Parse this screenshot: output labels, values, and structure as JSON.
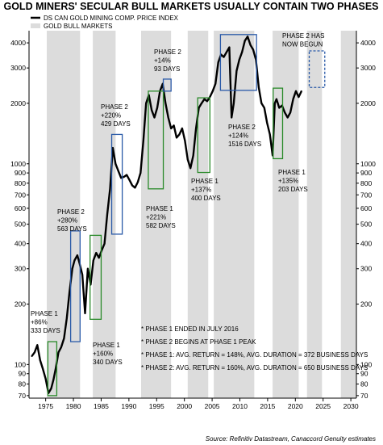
{
  "chart_data": {
    "type": "line",
    "title": "GOLD MINERS' SECULAR BULL MARKETS USUALLY CONTAIN TWO PHASES",
    "source": "Source: Refinitiv Datastream, Canaccord Genuity estimates",
    "yscale": "log",
    "ylim": [
      68,
      4600
    ],
    "xlim": [
      1972.0,
      2031.0
    ],
    "grid": false,
    "legend_position": "top-left",
    "legend": [
      {
        "label": "DS CAN GOLD MINING COMP. PRICE INDEX",
        "color": "#000000",
        "style": "line"
      },
      {
        "label": "GOLD BULL MARKETS",
        "color": "#dcdcdc",
        "style": "area"
      }
    ],
    "x_ticks": [
      1975,
      1980,
      1985,
      1990,
      1995,
      2000,
      2005,
      2010,
      2015,
      2020,
      2025,
      2030
    ],
    "y_ticks_left": [
      70,
      80,
      90,
      100,
      200,
      300,
      400,
      500,
      600,
      700,
      800,
      900,
      1000,
      2000,
      3000,
      4000
    ],
    "y_ticks_right": [
      70,
      80,
      90,
      100,
      200,
      300,
      400,
      500,
      600,
      700,
      800,
      900,
      1000,
      2000,
      3000,
      4000
    ],
    "bull_markets": [
      [
        1975.2,
        1981.2
      ],
      [
        1983.5,
        1987.6
      ],
      [
        1992.2,
        1997.6
      ],
      [
        2000.6,
        2004.3
      ],
      [
        2005.3,
        2012.6
      ],
      [
        2015.9,
        2020.6
      ],
      [
        2022.1,
        2024.8
      ],
      [
        2028.2,
        2031.0
      ]
    ],
    "series": [
      {
        "name": "DS CAN GOLD MINING COMP. PRICE INDEX",
        "color": "#000000",
        "x": [
          1972.5,
          1973.0,
          1973.5,
          1974.0,
          1974.5,
          1975.0,
          1975.5,
          1976.0,
          1976.4,
          1976.8,
          1977.3,
          1977.8,
          1978.3,
          1978.8,
          1979.3,
          1979.8,
          1980.2,
          1980.7,
          1981.1,
          1981.6,
          1982.1,
          1982.6,
          1983.1,
          1983.6,
          1984.1,
          1984.6,
          1985.1,
          1985.6,
          1986.1,
          1986.6,
          1987.1,
          1987.6,
          1988.1,
          1988.6,
          1989.1,
          1989.6,
          1990.1,
          1990.6,
          1991.1,
          1991.6,
          1992.1,
          1992.6,
          1993.1,
          1993.6,
          1994.1,
          1994.6,
          1995.1,
          1995.6,
          1996.1,
          1996.6,
          1997.1,
          1997.6,
          1998.1,
          1998.6,
          1999.1,
          1999.6,
          2000.1,
          2000.6,
          2001.1,
          2001.6,
          2002.1,
          2002.6,
          2003.1,
          2003.6,
          2004.1,
          2004.6,
          2005.1,
          2005.6,
          2006.1,
          2006.6,
          2007.1,
          2007.6,
          2008.1,
          2008.5,
          2008.9,
          2009.4,
          2009.9,
          2010.4,
          2010.9,
          2011.4,
          2011.9,
          2012.4,
          2012.9,
          2013.4,
          2013.9,
          2014.4,
          2014.9,
          2015.4,
          2015.9,
          2016.3,
          2016.6,
          2017.1,
          2017.6,
          2018.1,
          2018.6,
          2019.1,
          2019.6,
          2020.1,
          2020.6,
          2021.1
        ],
        "y": [
          110,
          115,
          125,
          105,
          95,
          85,
          72,
          76,
          84,
          95,
          115,
          122,
          135,
          170,
          230,
          300,
          330,
          350,
          320,
          280,
          180,
          300,
          250,
          330,
          360,
          340,
          370,
          400,
          560,
          750,
          1200,
          1000,
          920,
          850,
          860,
          880,
          830,
          780,
          760,
          810,
          900,
          1300,
          2000,
          2200,
          1850,
          1700,
          1900,
          2300,
          2500,
          2000,
          1700,
          1500,
          1550,
          1350,
          1400,
          1500,
          1300,
          1050,
          950,
          1100,
          1500,
          1900,
          2000,
          2100,
          2050,
          2150,
          2300,
          2500,
          3200,
          3500,
          3400,
          3600,
          3800,
          1700,
          2000,
          2900,
          3300,
          3600,
          4100,
          4300,
          3900,
          3700,
          3300,
          2400,
          2000,
          1900,
          1600,
          1400,
          1100,
          2000,
          2100,
          1900,
          1950,
          1800,
          1700,
          1800,
          2100,
          2300,
          2150,
          2300
        ]
      }
    ],
    "phase_boxes": [
      {
        "phase": 1,
        "x": [
          1975.4,
          1977.0
        ],
        "y": [
          70,
          130
        ]
      },
      {
        "phase": 2,
        "x": [
          1979.5,
          1981.2
        ],
        "y": [
          130,
          463
        ]
      },
      {
        "phase": 1,
        "x": [
          1983.0,
          1985.0
        ],
        "y": [
          168,
          440
        ]
      },
      {
        "phase": 2,
        "x": [
          1986.9,
          1988.8
        ],
        "y": [
          446,
          1400
        ]
      },
      {
        "phase": 1,
        "x": [
          1993.5,
          1996.2
        ],
        "y": [
          750,
          2300
        ]
      },
      {
        "phase": 2,
        "x": [
          1996.2,
          1997.6
        ],
        "y": [
          2300,
          2640
        ]
      },
      {
        "phase": 1,
        "x": [
          2002.4,
          2004.6
        ],
        "y": [
          905,
          2130
        ]
      },
      {
        "phase": 2,
        "x": [
          2006.5,
          2013.0
        ],
        "y": [
          2320,
          4400
        ]
      },
      {
        "phase": 1,
        "x": [
          2016.0,
          2017.7
        ],
        "y": [
          1060,
          2380
        ]
      },
      {
        "phase": 2,
        "x": [
          2022.5,
          2025.3
        ],
        "y": [
          2400,
          3650
        ],
        "projected": true
      }
    ],
    "annotations": [
      "PHASE 1\n+86%\n333 DAYS",
      "PHASE 2\n+280%\n563 DAYS",
      "PHASE 1\n+160%\n340 DAYS",
      "PHASE 2\n+220%\n429 DAYS",
      "PHASE 1\n+221%\n582 DAYS",
      "PHASE 2\n+14%\n93 DAYS",
      "PHASE 1\n+137%\n400 DAYS",
      "PHASE 2\n+124%\n1516 DAYS",
      "PHASE 1\n+135%\n203 DAYS",
      "PHASE 2 HAS\nNOW BEGUN"
    ],
    "notes": [
      "* PHASE 1 ENDED IN JULY 2016",
      "* PHASE 2 BEGINS AT PHASE 1 PEAK",
      "* PHASE 1: AVG. RETURN = 148%, AVG. DURATION = 372 BUSINESS DAYS",
      "* PHASE 2: AVG. RETURN = 160%, AVG. DURATION = 650 BUSINESS DAYS"
    ],
    "colors": {
      "phase1": "#2a8a2a",
      "phase2": "#2a5aa8",
      "bull_shade": "#dcdcdc",
      "line": "#000000"
    }
  }
}
